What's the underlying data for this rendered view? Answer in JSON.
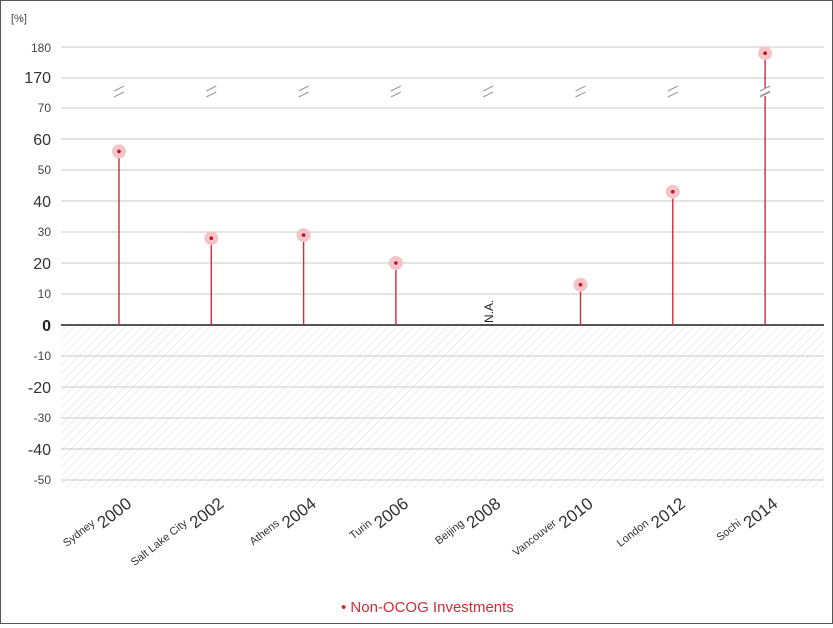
{
  "chart_data": {
    "type": "scatter",
    "ylabel": "[%]",
    "categories": [
      {
        "city": "Sydney",
        "year": "2000"
      },
      {
        "city": "Salt Lake City",
        "year": "2002"
      },
      {
        "city": "Athens",
        "year": "2004"
      },
      {
        "city": "Turin",
        "year": "2006"
      },
      {
        "city": "Beijing",
        "year": "2008"
      },
      {
        "city": "Vancouver",
        "year": "2010"
      },
      {
        "city": "London",
        "year": "2012"
      },
      {
        "city": "Sochi",
        "year": "2014"
      }
    ],
    "series": [
      {
        "name": "Non-OCOG Investments",
        "values": [
          56,
          28,
          29,
          20,
          null,
          13,
          43,
          178
        ],
        "color": "#d42a36"
      }
    ],
    "na_label": "N.A.",
    "y_ticks_upper": [
      "180",
      "170"
    ],
    "y_ticks_lower": [
      "70",
      "60",
      "50",
      "40",
      "30",
      "20",
      "10",
      "0",
      "-10",
      "-20",
      "-30",
      "-40",
      "-50"
    ],
    "y_tick_values_lower": [
      70,
      60,
      50,
      40,
      30,
      20,
      10,
      0,
      -10,
      -20,
      -30,
      -40,
      -50
    ],
    "y_tick_values_upper": [
      180,
      170
    ],
    "ylim_lower": [
      -50,
      70
    ],
    "ylim_upper": [
      170,
      180
    ],
    "axis_break": true,
    "negative_region_hatched": true,
    "grid": true,
    "legend_position": "bottom-center",
    "legend_label": "Non-OCOG Investments"
  }
}
